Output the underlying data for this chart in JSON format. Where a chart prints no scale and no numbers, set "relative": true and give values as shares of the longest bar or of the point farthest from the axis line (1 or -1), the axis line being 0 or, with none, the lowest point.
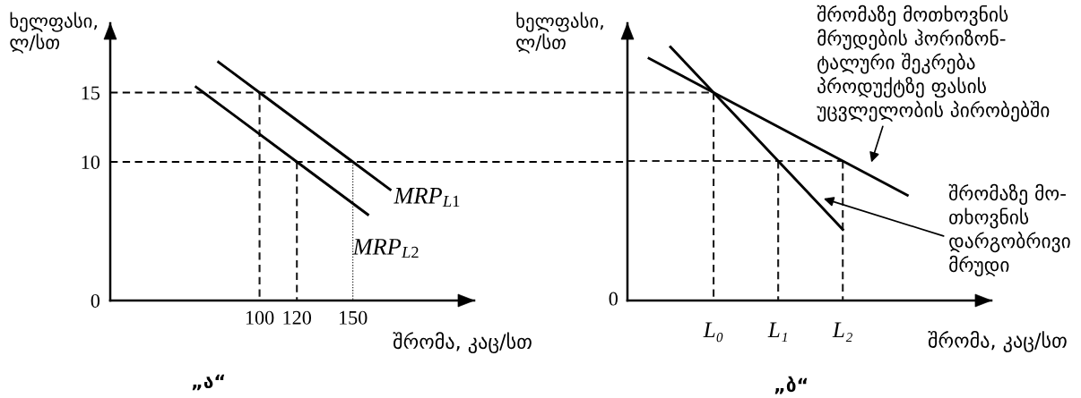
{
  "chart_data": [
    {
      "type": "line",
      "title": "„ა“",
      "xlabel": "შრომა, კაც/სთ",
      "ylabel": "ხელფასი,\nლ/სთ",
      "xlim": [
        20,
        215
      ],
      "xticks": [
        100,
        120,
        150
      ],
      "ylim": [
        0,
        20
      ],
      "yticks": [
        0,
        10,
        15
      ],
      "ref_lines": [
        {
          "axis": "y",
          "value": 15,
          "color": "#000000",
          "line_style": "dashed"
        },
        {
          "axis": "y",
          "value": 10,
          "color": "#000000",
          "line_style": "dashed"
        }
      ],
      "series": [
        {
          "name": "MRP$_{L1}$",
          "color": "#000000",
          "x": [
            78,
            100,
            150,
            170
          ],
          "values": [
            17.2,
            15,
            10,
            8
          ]
        },
        {
          "name": "MRP$_{L2}$",
          "color": "#000000",
          "x": [
            66,
            70,
            120,
            158
          ],
          "values": [
            15.4,
            15,
            10,
            6.2
          ]
        },
        {
          "color": "#1a1a1a",
          "line_style": "dashed",
          "x": [
            100,
            100
          ],
          "values": [
            15,
            0
          ]
        },
        {
          "color": "#1a1a1a",
          "line_style": "dashed",
          "x": [
            120,
            120
          ],
          "values": [
            10,
            0
          ]
        },
        {
          "color": "#1a1a1a",
          "line_style": "dotted",
          "x": [
            150,
            150
          ],
          "values": [
            10,
            0
          ]
        }
      ]
    },
    {
      "type": "line",
      "title": "„ბ“",
      "xlabel": "შრომა, კაც/სთ",
      "ylabel": "ხელფასი,\nლ/სთ",
      "relative": true,
      "annotations": [
        "0"
      ],
      "categories": [
        null,
        null,
        null,
        null,
        "L₀",
        null,
        null,
        "L₁",
        null,
        null,
        "L₂",
        null,
        null,
        null
      ],
      "series": [
        {
          "name": "შრომაზე მოთხოვნის\nმრუდების ჰორიზონ-\nტალური შეკრება\nპროდუქტზე ფასის\nუცვლელობის პირობებში",
          "color": "#000000",
          "values": [
            null,
            0.955,
            0.91,
            0.865,
            0.82,
            0.775,
            0.73,
            0.685,
            0.64,
            0.595,
            0.55,
            0.505,
            0.46,
            0.415
          ]
        },
        {
          "name": "შრომაზე მო-\nთხოვნის\nდარგობრივი\nმრუდი",
          "color": "#000000",
          "values": [
            null,
            null,
            1,
            0.91,
            0.82,
            0.73,
            0.64,
            0.55,
            0.46,
            0.37,
            0.28,
            null,
            null,
            null
          ]
        },
        {
          "color": "#1a1a1a",
          "line_style": "dashed",
          "values": [
            0.82,
            0.82,
            0.82,
            0.82,
            0.82,
            null,
            null,
            null,
            null,
            null,
            null,
            null,
            null,
            null
          ]
        },
        {
          "color": "#1a1a1a",
          "line_style": "dashed",
          "values": [
            0.55,
            0.55,
            0.55,
            0.55,
            0.55,
            0.55,
            0.55,
            0.55,
            0.55,
            0.55,
            0.55,
            null,
            null,
            null
          ]
        },
        {
          "color": "#1a1a1a",
          "line_style": "dashed",
          "x": [
            "L₀",
            "L₀"
          ],
          "values": [
            0.82,
            0
          ]
        },
        {
          "color": "#1a1a1a",
          "line_style": "dashed",
          "x": [
            "L₁",
            "L₁"
          ],
          "values": [
            0.55,
            0
          ]
        },
        {
          "color": "#1a1a1a",
          "line_style": "dashed",
          "x": [
            "L₂",
            "L₂"
          ],
          "values": [
            0.55,
            0
          ]
        }
      ]
    }
  ]
}
